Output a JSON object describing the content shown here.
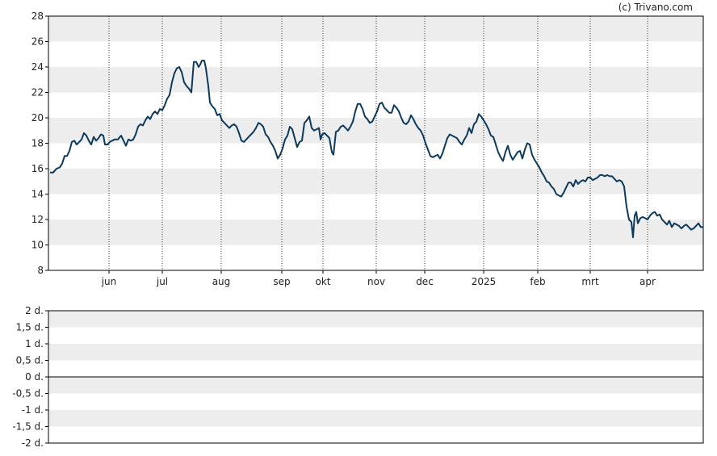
{
  "credit": "(c) Trivano.com",
  "chart_data": [
    {
      "type": "line",
      "title": "",
      "xlabel": "",
      "ylabel": "",
      "ylim": [
        8,
        28
      ],
      "y_ticks": [
        "28",
        "26",
        "24",
        "22",
        "20",
        "18",
        "16",
        "14",
        "12",
        "10",
        "8"
      ],
      "x_ticks": [
        "jun",
        "jul",
        "aug",
        "sep",
        "okt",
        "nov",
        "dec",
        "2025",
        "feb",
        "mrt",
        "apr"
      ],
      "grid": "alternating horizontal bands, dotted vertical lines at month ticks",
      "line_color": "#0d3a5c",
      "series": [
        {
          "name": "",
          "points": [
            [
              0,
              15.7
            ],
            [
              4,
              15.7
            ],
            [
              8,
              16.0
            ],
            [
              12,
              16.1
            ],
            [
              15,
              16.4
            ],
            [
              18,
              17.0
            ],
            [
              21,
              17.0
            ],
            [
              24,
              17.4
            ],
            [
              27,
              18.1
            ],
            [
              30,
              18.2
            ],
            [
              33,
              17.9
            ],
            [
              36,
              18.1
            ],
            [
              39,
              18.3
            ],
            [
              42,
              18.8
            ],
            [
              45,
              18.6
            ],
            [
              48,
              18.2
            ],
            [
              51,
              17.9
            ],
            [
              54,
              18.5
            ],
            [
              57,
              18.2
            ],
            [
              60,
              18.4
            ],
            [
              63,
              18.7
            ],
            [
              66,
              18.6
            ],
            [
              68,
              17.9
            ],
            [
              71,
              17.9
            ],
            [
              74,
              18.1
            ],
            [
              77,
              18.2
            ],
            [
              80,
              18.3
            ],
            [
              84,
              18.3
            ],
            [
              88,
              18.6
            ],
            [
              91,
              18.2
            ],
            [
              94,
              17.8
            ],
            [
              97,
              18.3
            ],
            [
              100,
              18.2
            ],
            [
              103,
              18.3
            ],
            [
              106,
              18.7
            ],
            [
              109,
              19.3
            ],
            [
              112,
              19.5
            ],
            [
              115,
              19.4
            ],
            [
              118,
              19.8
            ],
            [
              121,
              20.1
            ],
            [
              124,
              19.9
            ],
            [
              127,
              20.3
            ],
            [
              130,
              20.5
            ],
            [
              133,
              20.3
            ],
            [
              136,
              20.7
            ],
            [
              139,
              20.6
            ],
            [
              142,
              21.0
            ],
            [
              145,
              21.5
            ],
            [
              148,
              21.8
            ],
            [
              151,
              22.8
            ],
            [
              154,
              23.5
            ],
            [
              157,
              23.9
            ],
            [
              160,
              24.0
            ],
            [
              163,
              23.6
            ],
            [
              166,
              22.8
            ],
            [
              169,
              22.5
            ],
            [
              172,
              22.3
            ],
            [
              175,
              22.0
            ],
            [
              178,
              24.4
            ],
            [
              181,
              24.4
            ],
            [
              184,
              24.0
            ],
            [
              186,
              24.2
            ],
            [
              188,
              24.5
            ],
            [
              191,
              24.5
            ],
            [
              193,
              23.9
            ],
            [
              196,
              22.5
            ],
            [
              198,
              21.2
            ],
            [
              201,
              20.9
            ],
            [
              204,
              20.7
            ],
            [
              207,
              20.2
            ],
            [
              210,
              20.3
            ],
            [
              213,
              19.8
            ],
            [
              216,
              19.6
            ],
            [
              219,
              19.4
            ],
            [
              222,
              19.2
            ],
            [
              225,
              19.4
            ],
            [
              228,
              19.5
            ],
            [
              231,
              19.3
            ],
            [
              234,
              18.8
            ],
            [
              237,
              18.2
            ],
            [
              240,
              18.1
            ],
            [
              243,
              18.3
            ],
            [
              246,
              18.5
            ],
            [
              249,
              18.7
            ],
            [
              252,
              18.9
            ],
            [
              255,
              19.2
            ],
            [
              258,
              19.6
            ],
            [
              261,
              19.5
            ],
            [
              264,
              19.3
            ],
            [
              267,
              18.7
            ],
            [
              270,
              18.5
            ],
            [
              273,
              18.1
            ],
            [
              276,
              17.8
            ],
            [
              279,
              17.4
            ],
            [
              282,
              16.8
            ],
            [
              285,
              17.1
            ],
            [
              288,
              17.6
            ],
            [
              291,
              18.3
            ],
            [
              294,
              18.6
            ],
            [
              297,
              19.3
            ],
            [
              300,
              19.1
            ],
            [
              303,
              18.4
            ],
            [
              306,
              17.7
            ],
            [
              309,
              18.1
            ],
            [
              312,
              18.2
            ],
            [
              315,
              19.6
            ],
            [
              318,
              19.8
            ],
            [
              321,
              20.1
            ],
            [
              324,
              19.2
            ],
            [
              327,
              19.0
            ],
            [
              330,
              19.1
            ],
            [
              333,
              19.2
            ],
            [
              335,
              18.3
            ],
            [
              337,
              18.7
            ],
            [
              340,
              18.8
            ],
            [
              343,
              18.6
            ],
            [
              346,
              18.4
            ],
            [
              349,
              17.3
            ],
            [
              351,
              17.1
            ],
            [
              354,
              18.9
            ],
            [
              357,
              19.0
            ],
            [
              360,
              19.3
            ],
            [
              363,
              19.4
            ],
            [
              366,
              19.2
            ],
            [
              369,
              19.0
            ],
            [
              372,
              19.3
            ],
            [
              375,
              19.7
            ],
            [
              378,
              20.5
            ],
            [
              381,
              21.1
            ],
            [
              384,
              21.1
            ],
            [
              387,
              20.7
            ],
            [
              390,
              20.1
            ],
            [
              393,
              19.9
            ],
            [
              396,
              19.6
            ],
            [
              399,
              19.7
            ],
            [
              402,
              20.1
            ],
            [
              405,
              20.5
            ],
            [
              408,
              21.1
            ],
            [
              411,
              21.2
            ],
            [
              414,
              20.8
            ],
            [
              417,
              20.6
            ],
            [
              420,
              20.4
            ],
            [
              423,
              20.4
            ],
            [
              426,
              21.0
            ],
            [
              429,
              20.8
            ],
            [
              432,
              20.5
            ],
            [
              435,
              20.0
            ],
            [
              438,
              19.6
            ],
            [
              441,
              19.5
            ],
            [
              444,
              19.7
            ],
            [
              447,
              20.2
            ],
            [
              450,
              19.9
            ],
            [
              453,
              19.5
            ],
            [
              456,
              19.2
            ],
            [
              459,
              19.0
            ],
            [
              462,
              18.6
            ],
            [
              465,
              18.0
            ],
            [
              468,
              17.5
            ],
            [
              471,
              17.0
            ],
            [
              474,
              16.9
            ],
            [
              477,
              17.0
            ],
            [
              480,
              17.1
            ],
            [
              483,
              16.8
            ],
            [
              486,
              17.2
            ],
            [
              489,
              17.8
            ],
            [
              492,
              18.4
            ],
            [
              495,
              18.7
            ],
            [
              498,
              18.6
            ],
            [
              501,
              18.5
            ],
            [
              504,
              18.4
            ],
            [
              507,
              18.1
            ],
            [
              510,
              17.9
            ],
            [
              513,
              18.3
            ],
            [
              516,
              18.6
            ],
            [
              519,
              19.2
            ],
            [
              522,
              18.8
            ],
            [
              525,
              19.5
            ],
            [
              528,
              19.7
            ],
            [
              531,
              20.3
            ],
            [
              534,
              20.1
            ],
            [
              537,
              19.8
            ],
            [
              540,
              19.5
            ],
            [
              543,
              19.1
            ],
            [
              546,
              18.6
            ],
            [
              549,
              18.5
            ],
            [
              552,
              17.9
            ],
            [
              555,
              17.3
            ],
            [
              558,
              16.9
            ],
            [
              561,
              16.6
            ],
            [
              564,
              17.3
            ],
            [
              567,
              17.8
            ],
            [
              570,
              17.1
            ],
            [
              573,
              16.7
            ],
            [
              576,
              17.0
            ],
            [
              579,
              17.3
            ],
            [
              582,
              17.4
            ],
            [
              585,
              16.8
            ],
            [
              588,
              17.5
            ],
            [
              591,
              18.0
            ],
            [
              594,
              17.9
            ],
            [
              597,
              17.1
            ],
            [
              600,
              16.7
            ],
            [
              603,
              16.4
            ],
            [
              606,
              16.1
            ],
            [
              609,
              15.7
            ],
            [
              612,
              15.4
            ],
            [
              615,
              15.0
            ],
            [
              618,
              14.9
            ],
            [
              621,
              14.6
            ],
            [
              624,
              14.4
            ],
            [
              627,
              14.0
            ],
            [
              630,
              13.9
            ],
            [
              633,
              13.8
            ],
            [
              636,
              14.1
            ],
            [
              639,
              14.5
            ],
            [
              642,
              14.9
            ],
            [
              645,
              14.9
            ],
            [
              648,
              14.6
            ],
            [
              651,
              15.1
            ],
            [
              654,
              14.8
            ],
            [
              657,
              15.0
            ],
            [
              660,
              15.1
            ],
            [
              663,
              15.0
            ],
            [
              666,
              15.3
            ],
            [
              669,
              15.3
            ],
            [
              672,
              15.1
            ],
            [
              675,
              15.2
            ],
            [
              678,
              15.3
            ],
            [
              681,
              15.5
            ],
            [
              684,
              15.5
            ],
            [
              687,
              15.4
            ],
            [
              690,
              15.5
            ],
            [
              693,
              15.4
            ],
            [
              696,
              15.4
            ],
            [
              699,
              15.2
            ],
            [
              702,
              15.0
            ],
            [
              705,
              15.1
            ],
            [
              708,
              15.0
            ],
            [
              711,
              14.6
            ],
            [
              714,
              13.0
            ],
            [
              717,
              12.0
            ],
            [
              720,
              11.8
            ],
            [
              722,
              10.6
            ],
            [
              724,
              12.3
            ],
            [
              726,
              12.6
            ],
            [
              728,
              11.7
            ],
            [
              731,
              12.1
            ],
            [
              734,
              12.2
            ],
            [
              737,
              12.1
            ],
            [
              740,
              12.0
            ],
            [
              743,
              12.3
            ],
            [
              746,
              12.5
            ],
            [
              749,
              12.6
            ],
            [
              752,
              12.3
            ],
            [
              755,
              12.4
            ],
            [
              758,
              12.0
            ],
            [
              761,
              11.8
            ],
            [
              764,
              11.6
            ],
            [
              767,
              11.9
            ],
            [
              770,
              11.4
            ],
            [
              773,
              11.7
            ],
            [
              776,
              11.6
            ],
            [
              779,
              11.5
            ],
            [
              782,
              11.3
            ],
            [
              785,
              11.5
            ],
            [
              788,
              11.6
            ],
            [
              791,
              11.4
            ],
            [
              794,
              11.2
            ],
            [
              797,
              11.3
            ],
            [
              800,
              11.5
            ],
            [
              803,
              11.7
            ],
            [
              806,
              11.4
            ],
            [
              809,
              11.4
            ]
          ]
        }
      ]
    },
    {
      "type": "line",
      "title": "",
      "xlabel": "",
      "ylabel": "",
      "ylim": [
        -2,
        2
      ],
      "y_ticks": [
        "2 d.",
        "1,5 d.",
        "1 d.",
        "0,5 d.",
        "0 d.",
        "-0,5 d.",
        "-1 d.",
        "-1,5 d.",
        "-2 d."
      ],
      "grid": "alternating horizontal bands, solid line at zero",
      "series": []
    }
  ]
}
